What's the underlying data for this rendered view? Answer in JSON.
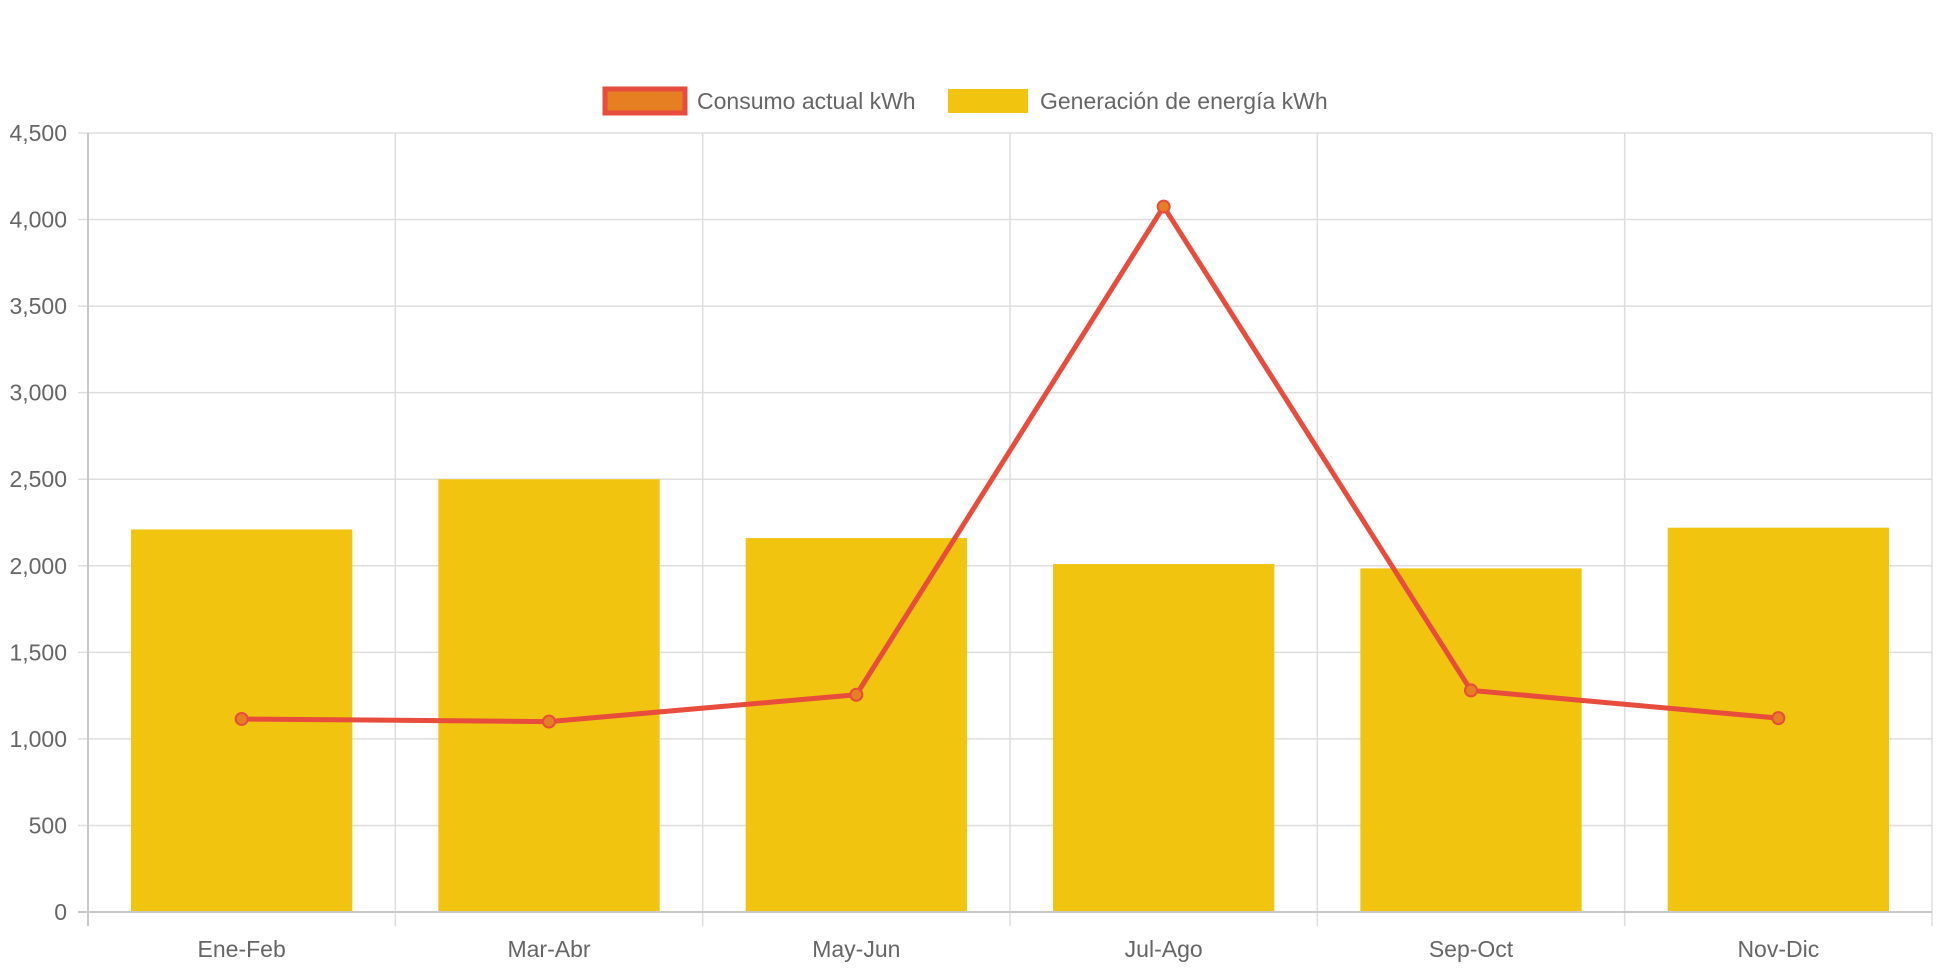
{
  "chart_data": {
    "type": "bar",
    "title": "",
    "xlabel": "",
    "ylabel": "",
    "categories": [
      "Ene-Feb",
      "Mar-Abr",
      "May-Jun",
      "Jul-Ago",
      "Sep-Oct",
      "Nov-Dic"
    ],
    "ylim": [
      0,
      4500
    ],
    "y_ticks": [
      0,
      500,
      1000,
      1500,
      2000,
      2500,
      3000,
      3500,
      4000,
      4500
    ],
    "y_tick_labels": [
      "0",
      "500",
      "1,000",
      "1,500",
      "2,000",
      "2,500",
      "3,000",
      "3,500",
      "4,000",
      "4,500"
    ],
    "grid": true,
    "legend_position": "top-center",
    "series": [
      {
        "name": "Consumo actual kWh",
        "type": "line",
        "values": [
          1115,
          1100,
          1255,
          4075,
          1280,
          1120
        ],
        "color": "#E74C3C",
        "point_fill": "#E67E22"
      },
      {
        "name": "Generación de energía kWh",
        "type": "bar",
        "values": [
          2210,
          2500,
          2160,
          2010,
          1985,
          2220
        ],
        "color": "#F1C40F"
      }
    ]
  }
}
